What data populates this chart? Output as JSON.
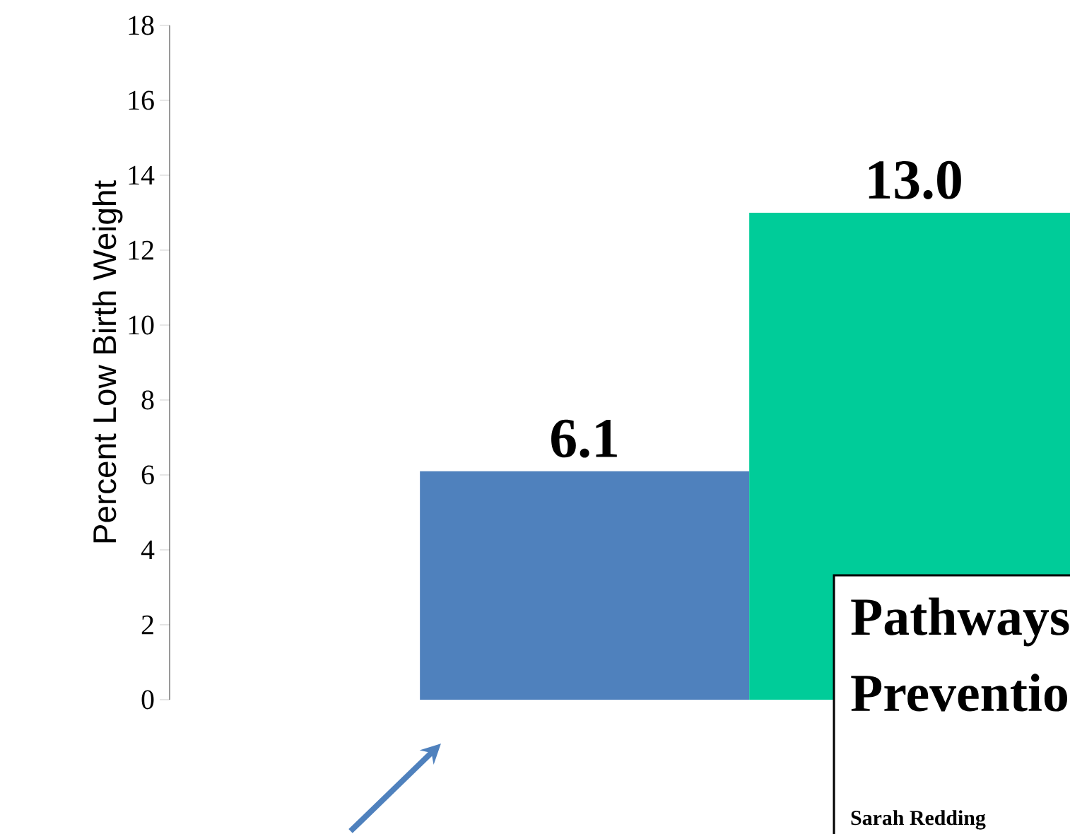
{
  "chart_data": {
    "type": "bar",
    "ylabel": "Percent Low Birth Weight",
    "categories": [
      null,
      null
    ],
    "values": [
      6.1,
      13.0
    ],
    "colors": [
      "#4f81bd",
      "#00cc99"
    ],
    "value_labels": [
      "6.1",
      "13.0"
    ],
    "ylim": [
      0,
      18
    ],
    "yticks": [
      0,
      2,
      4,
      6,
      8,
      10,
      12,
      14,
      16,
      18
    ],
    "grid": false,
    "annotations": [
      "Pathways",
      "Preventio",
      "Sarah Redding"
    ]
  }
}
